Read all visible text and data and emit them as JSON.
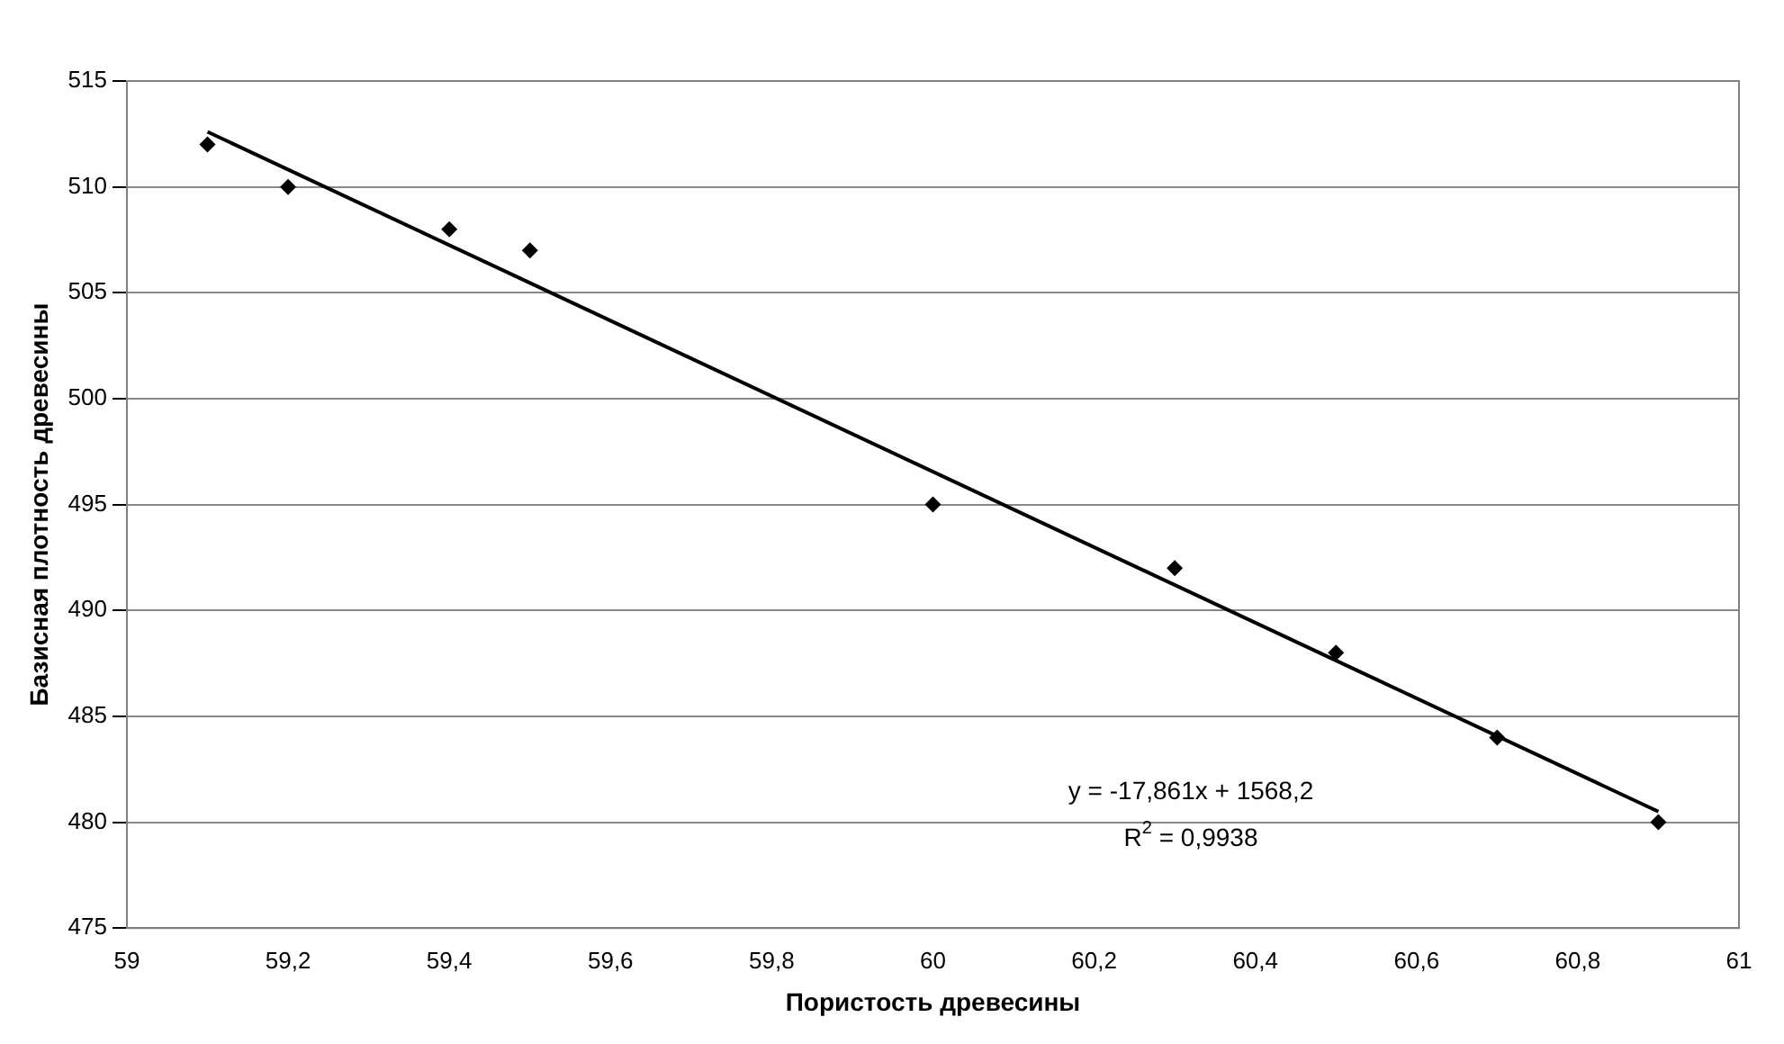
{
  "chart_data": {
    "type": "scatter",
    "xlabel": "Пористость древесины",
    "ylabel": "Базисная плотность древесины",
    "x": [
      59.1,
      59.2,
      59.4,
      59.5,
      60,
      60.3,
      60.5,
      60.7,
      60.9
    ],
    "series": [
      {
        "type": "scatter",
        "color": "#000000",
        "marker": "diamond",
        "values": [
          512,
          510,
          508,
          507,
          495,
          492,
          488,
          484,
          480
        ]
      },
      {
        "type": "line",
        "color": "#000000",
        "marker": "none",
        "line_style": "solid",
        "x": [
          59.1,
          60.9
        ],
        "values": [
          512.6,
          480.5
        ]
      }
    ],
    "xlim": [
      59,
      61
    ],
    "xticks": [
      59,
      {
        "value": 59.2,
        "label": "59,2"
      },
      {
        "value": 59.4,
        "label": "59,4"
      },
      {
        "value": 59.6,
        "label": "59,6"
      },
      {
        "value": 59.8,
        "label": "59,8"
      },
      60,
      {
        "value": 60.2,
        "label": "60,2"
      },
      {
        "value": 60.4,
        "label": "60,4"
      },
      {
        "value": 60.6,
        "label": "60,6"
      },
      {
        "value": 60.8,
        "label": "60,8"
      },
      61
    ],
    "ylim": [
      475,
      515
    ],
    "yticks": [
      475,
      480,
      485,
      490,
      495,
      500,
      505,
      510,
      515
    ],
    "grid": "y",
    "legend": false,
    "annotations": [
      "y = -17,861x + 1568,2",
      "R$^{2}$ = 0,9938"
    ]
  }
}
